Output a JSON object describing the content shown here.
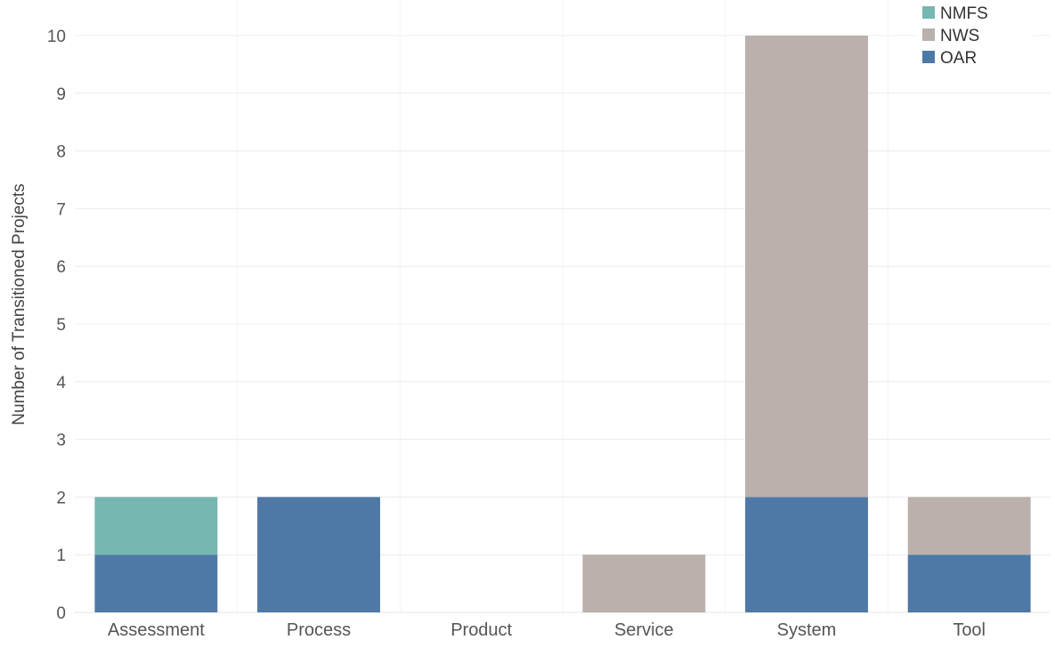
{
  "chart_data": {
    "type": "bar",
    "stacked": true,
    "title": "",
    "xlabel": "",
    "ylabel": "Number of Transitioned Projects",
    "categories": [
      "Assessment",
      "Process",
      "Product",
      "Service",
      "System",
      "Tool"
    ],
    "series": [
      {
        "name": "OAR",
        "color": "#4e79a7",
        "values": [
          1,
          2,
          0,
          0,
          2,
          1
        ]
      },
      {
        "name": "NWS",
        "color": "#bab0ac",
        "values": [
          0,
          0,
          0,
          1,
          8,
          1
        ]
      },
      {
        "name": "NMFS",
        "color": "#76b7b2",
        "values": [
          1,
          0,
          0,
          0,
          0,
          0
        ]
      }
    ],
    "legend_order": [
      "NMFS",
      "NWS",
      "OAR"
    ],
    "legend_position": "top-right",
    "ylim": [
      0,
      10
    ],
    "yticks": [
      0,
      1,
      2,
      3,
      4,
      5,
      6,
      7,
      8,
      9,
      10
    ],
    "grid": true
  }
}
